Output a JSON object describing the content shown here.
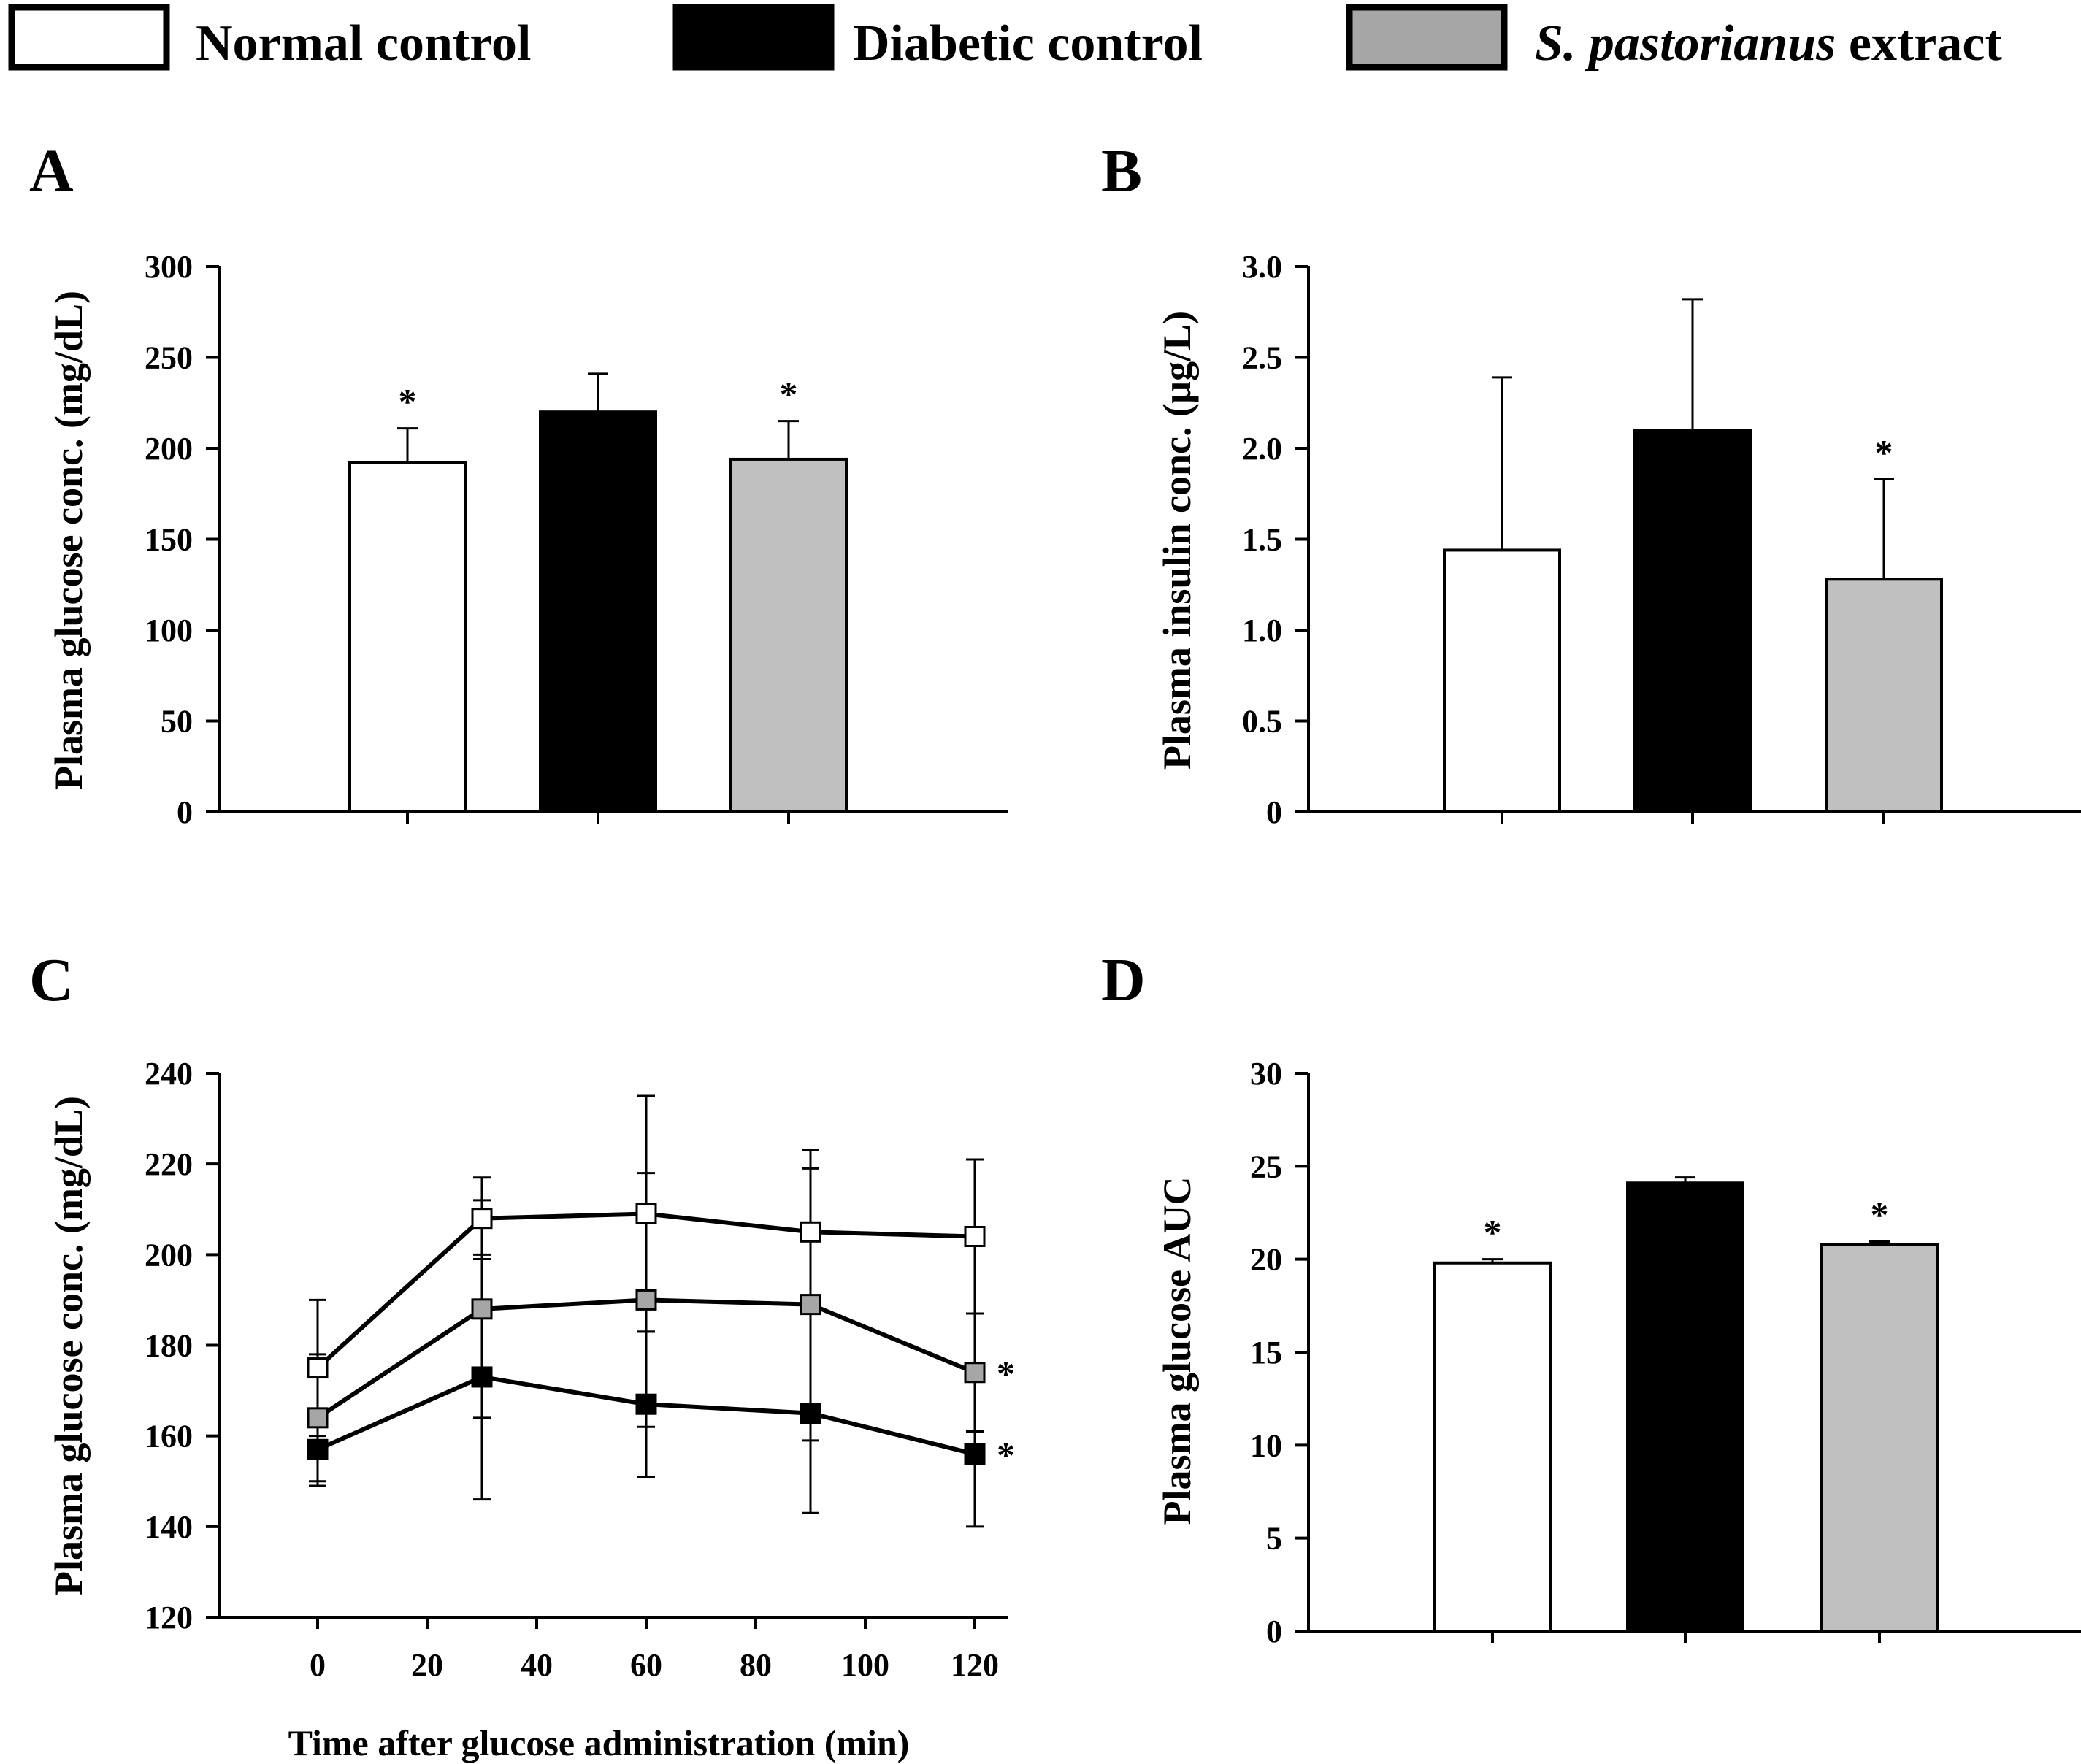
{
  "legend": {
    "items": [
      {
        "label": "Normal control",
        "italic": "",
        "color": "#ffffff"
      },
      {
        "label": "Diabetic control",
        "italic": "",
        "color": "#000000"
      },
      {
        "label": " extract",
        "italic": "S. pastorianus",
        "color": "#a6a6a6"
      }
    ]
  },
  "panels": {
    "A": {
      "letter": "A"
    },
    "B": {
      "letter": "B"
    },
    "C": {
      "letter": "C"
    },
    "D": {
      "letter": "D"
    }
  },
  "chart_data": [
    {
      "id": "A",
      "type": "bar",
      "categories": [
        "Normal control",
        "Diabetic control",
        "S. pastorianus extract"
      ],
      "values": [
        192,
        220,
        194
      ],
      "errors": [
        19,
        21,
        21
      ],
      "significant": [
        true,
        false,
        true
      ],
      "colors": [
        "#ffffff",
        "#000000",
        "#c0c0c0"
      ],
      "ylabel": "Plasma glucose conc. (mg/dL)",
      "ylim": [
        0,
        300
      ],
      "yticks": [
        "0",
        "50",
        "100",
        "150",
        "200",
        "250",
        "300"
      ],
      "star_symbol": "*"
    },
    {
      "id": "B",
      "type": "bar",
      "categories": [
        "Normal control",
        "Diabetic control",
        "S. pastorianus extract"
      ],
      "values": [
        1.44,
        2.1,
        1.28
      ],
      "errors": [
        0.95,
        0.72,
        0.55
      ],
      "significant": [
        false,
        false,
        true
      ],
      "colors": [
        "#ffffff",
        "#000000",
        "#c0c0c0"
      ],
      "ylabel": "Plasma insulin conc. (µg/L)",
      "ylim": [
        0,
        3.0
      ],
      "yticks": [
        "0",
        "0.5",
        "1.0",
        "1.5",
        "2.0",
        "2.5",
        "3.0"
      ],
      "star_symbol": "*"
    },
    {
      "id": "C",
      "type": "line",
      "x": [
        0,
        30,
        60,
        90,
        120
      ],
      "xticks": [
        "0",
        "20",
        "40",
        "60",
        "80",
        "100",
        "120"
      ],
      "xlim": [
        -18,
        126
      ],
      "ylim": [
        120,
        240
      ],
      "yticks": [
        "120",
        "140",
        "160",
        "180",
        "200",
        "220",
        "240"
      ],
      "xlabel": "Time after glucose administration (min)",
      "ylabel": "Plasma glucose conc. (mg/dL)",
      "series": [
        {
          "name": "Normal control",
          "color": "#ffffff",
          "values": [
            175,
            208,
            209,
            205,
            204
          ],
          "errors": [
            15,
            9,
            26,
            18,
            17
          ],
          "significant": false
        },
        {
          "name": "S. pastorianus extract",
          "color": "#a6a6a6",
          "values": [
            164,
            188,
            190,
            189,
            174
          ],
          "errors": [
            14,
            24,
            28,
            30,
            13
          ],
          "significant": true
        },
        {
          "name": "Diabetic control",
          "color": "#000000",
          "values": [
            157,
            173,
            167,
            165,
            156
          ],
          "errors": [
            8,
            27,
            16,
            22,
            16
          ],
          "significant": true
        }
      ],
      "star_symbol": "*"
    },
    {
      "id": "D",
      "type": "bar",
      "categories": [
        "Normal control",
        "Diabetic control",
        "S. pastorianus extract"
      ],
      "values": [
        19.8,
        24.1,
        20.8
      ],
      "errors": [
        0.2,
        0.3,
        0.15
      ],
      "significant": [
        true,
        false,
        true
      ],
      "colors": [
        "#ffffff",
        "#000000",
        "#c0c0c0"
      ],
      "ylabel": "Plasma glucose AUC",
      "ylim": [
        0,
        30
      ],
      "yticks": [
        "0",
        "5",
        "10",
        "15",
        "20",
        "25",
        "30"
      ],
      "star_symbol": "*"
    }
  ]
}
